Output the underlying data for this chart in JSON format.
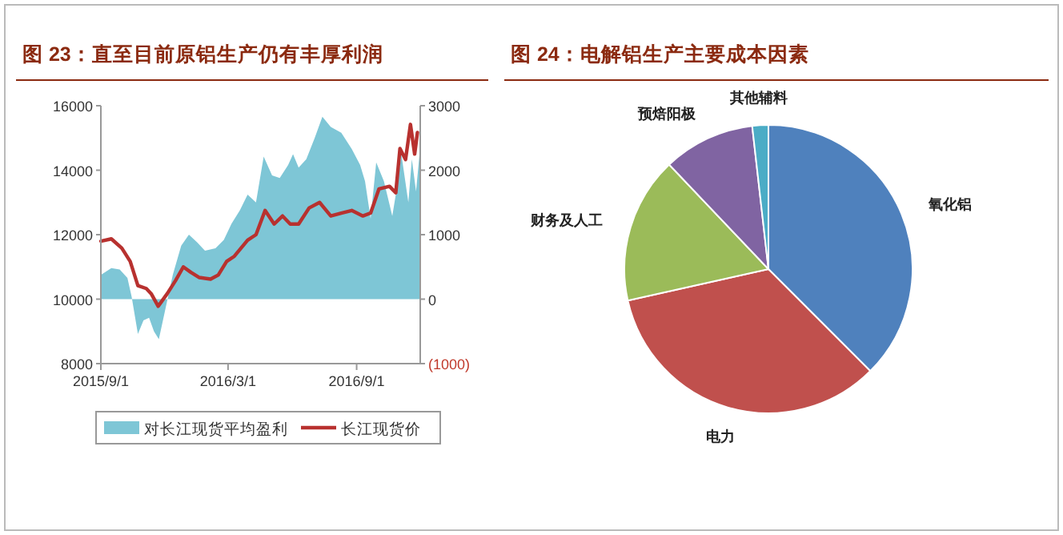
{
  "chart_data": [
    {
      "type": "line",
      "title": "图 23：直至目前原铝生产仍有丰厚利润",
      "xlim": [
        "2015-09-01",
        "2016-12-01"
      ],
      "xticks": [
        {
          "value": "2015-09-01",
          "label": "2015/9/1"
        },
        {
          "value": "2016-03-01",
          "label": "2016/3/1"
        },
        {
          "value": "2016-09-01",
          "label": "2016/9/1"
        }
      ],
      "ylim": [
        8000,
        16000
      ],
      "yticks": [
        8000,
        10000,
        12000,
        14000,
        16000
      ],
      "y2lim": [
        -1000,
        3000
      ],
      "y2ticks": [
        {
          "value": -1000,
          "label": "(1000)"
        },
        0,
        1000,
        2000,
        3000
      ],
      "legend": "bottom",
      "series": [
        {
          "name": "对长江现货平均盈利",
          "type": "area",
          "axis": "y2",
          "color": "#7ec6d6",
          "x": [
            "2015-09-01",
            "2015-09-16",
            "2015-09-28",
            "2015-10-09",
            "2015-10-15",
            "2015-10-24",
            "2015-11-01",
            "2015-11-09",
            "2015-11-16",
            "2015-11-23",
            "2015-12-02",
            "2015-12-13",
            "2015-12-25",
            "2016-01-05",
            "2016-01-17",
            "2016-01-28",
            "2016-02-12",
            "2016-02-24",
            "2016-03-06",
            "2016-03-18",
            "2016-03-29",
            "2016-04-10",
            "2016-04-21",
            "2016-05-03",
            "2016-05-14",
            "2016-05-26",
            "2016-06-02",
            "2016-06-10",
            "2016-06-21",
            "2016-07-03",
            "2016-07-14",
            "2016-07-26",
            "2016-08-10",
            "2016-08-25",
            "2016-09-06",
            "2016-09-13",
            "2016-09-21",
            "2016-09-29",
            "2016-10-10",
            "2016-10-22",
            "2016-10-29",
            "2016-11-04",
            "2016-11-14",
            "2016-11-19",
            "2016-11-25",
            "2016-11-30"
          ],
          "values": [
            375,
            480,
            460,
            330,
            40,
            -540,
            -330,
            -290,
            -500,
            -620,
            -170,
            380,
            830,
            1000,
            880,
            750,
            790,
            920,
            1170,
            1380,
            1620,
            1500,
            2210,
            1920,
            1880,
            2080,
            2250,
            2040,
            2170,
            2500,
            2830,
            2670,
            2580,
            2330,
            2080,
            1830,
            1250,
            2120,
            1830,
            1290,
            1750,
            2250,
            1500,
            2170,
            1670,
            2250
          ]
        },
        {
          "name": "长江现货价",
          "type": "line",
          "color": "#b8312f",
          "x": [
            "2015-09-01",
            "2015-09-16",
            "2015-10-01",
            "2015-10-13",
            "2015-10-24",
            "2015-11-05",
            "2015-11-12",
            "2015-11-22",
            "2015-12-05",
            "2015-12-17",
            "2015-12-28",
            "2016-01-08",
            "2016-01-20",
            "2016-02-05",
            "2016-02-16",
            "2016-02-28",
            "2016-03-10",
            "2016-03-29",
            "2016-04-10",
            "2016-04-23",
            "2016-05-06",
            "2016-05-18",
            "2016-05-29",
            "2016-06-10",
            "2016-06-25",
            "2016-07-10",
            "2016-07-26",
            "2016-08-10",
            "2016-08-25",
            "2016-09-10",
            "2016-09-21",
            "2016-10-03",
            "2016-10-18",
            "2016-10-27",
            "2016-11-02",
            "2016-11-10",
            "2016-11-17",
            "2016-11-23",
            "2016-11-27"
          ],
          "values": [
            11800,
            11870,
            11580,
            11170,
            10420,
            10330,
            10170,
            9780,
            10170,
            10580,
            11000,
            10830,
            10670,
            10620,
            10750,
            11170,
            11330,
            11830,
            12000,
            12750,
            12330,
            12580,
            12330,
            12330,
            12830,
            13000,
            12580,
            12670,
            12750,
            12580,
            12670,
            13420,
            13500,
            13300,
            14670,
            14330,
            15420,
            14500,
            15170
          ]
        }
      ]
    },
    {
      "type": "pie",
      "title": "图 24：电解铝生产主要成本因素",
      "categories": [
        "氧化铝",
        "电力",
        "财务及人工",
        "预焙阳极",
        "其他辅料"
      ],
      "values": [
        37.5,
        34,
        16.4,
        10.3,
        1.8
      ],
      "colors": [
        "#4f81bd",
        "#c0504d",
        "#9bbb59",
        "#8064a2",
        "#4bacc6"
      ]
    }
  ]
}
